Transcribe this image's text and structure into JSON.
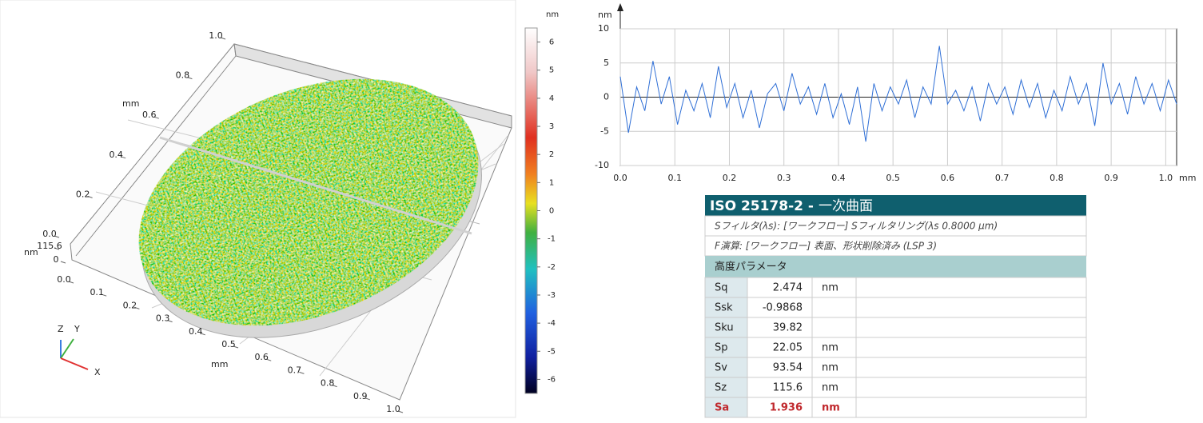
{
  "chart_data": {
    "type": "line",
    "y_label": "nm",
    "x_label": "mm",
    "color": "#2f6fd6",
    "grid": true,
    "xlim": [
      0,
      1.02
    ],
    "ylim": [
      -10,
      10
    ],
    "xticks": [
      {
        "value": 0,
        "label": "0.0"
      },
      0.1,
      0.2,
      0.3,
      0.4,
      0.5,
      0.6,
      0.7,
      0.8,
      0.9,
      {
        "value": 1,
        "label": "1.0"
      }
    ],
    "yticks": [
      10,
      5,
      0,
      -5,
      -10
    ],
    "x": [
      0,
      0.015,
      0.03,
      0.045,
      0.06,
      0.075,
      0.09,
      0.105,
      0.12,
      0.135,
      0.15,
      0.165,
      0.18,
      0.195,
      0.21,
      0.225,
      0.24,
      0.255,
      0.27,
      0.285,
      0.3,
      0.315,
      0.33,
      0.345,
      0.36,
      0.375,
      0.39,
      0.405,
      0.42,
      0.435,
      0.45,
      0.465,
      0.48,
      0.495,
      0.51,
      0.525,
      0.54,
      0.555,
      0.57,
      0.585,
      0.6,
      0.615,
      0.63,
      0.645,
      0.66,
      0.675,
      0.69,
      0.705,
      0.72,
      0.735,
      0.75,
      0.765,
      0.78,
      0.795,
      0.81,
      0.825,
      0.84,
      0.855,
      0.87,
      0.885,
      0.9,
      0.915,
      0.93,
      0.945,
      0.96,
      0.975,
      0.99,
      1.005,
      1.02
    ],
    "values": [
      3,
      -5.2,
      1.5,
      -2,
      5.3,
      -1,
      3,
      -4,
      1,
      -2,
      2,
      -3,
      4.5,
      -1.5,
      2,
      -3,
      1,
      -4.5,
      0.5,
      2,
      -2,
      3.5,
      -1,
      1.5,
      -2.5,
      2,
      -3,
      0.5,
      -4,
      1.5,
      -6.5,
      2,
      -2,
      1.5,
      -1,
      2.5,
      -3,
      1.5,
      -1,
      7.5,
      -1,
      1,
      -2,
      1.5,
      -3.5,
      2,
      -1,
      1.5,
      -2.5,
      2.5,
      -1.5,
      2,
      -3,
      1,
      -2,
      3,
      -1,
      2,
      -4.2,
      5,
      -1,
      2,
      -2.5,
      3,
      -1,
      2,
      -2,
      2.5,
      -1
    ]
  },
  "surface_view": {
    "y_axis": {
      "label": "mm",
      "ticks": [
        {
          "value": 0,
          "label": "0.0"
        },
        0.2,
        0.4,
        0.6,
        0.8,
        {
          "value": 1,
          "label": "1.0"
        }
      ]
    },
    "x_axis": {
      "label": "mm",
      "ticks": [
        {
          "value": 0,
          "label": "0.0"
        },
        0.1,
        0.2,
        0.3,
        0.4,
        0.5,
        0.6,
        0.7,
        0.8,
        0.9,
        {
          "value": 1,
          "label": "1.0"
        }
      ]
    },
    "z_axis": {
      "label": "nm",
      "ticks": [
        0,
        115.6
      ]
    },
    "colorbar": {
      "unit": "nm",
      "lim": [
        -6.5,
        6.5
      ],
      "ticks": [
        6,
        5,
        4,
        3,
        2,
        1,
        0,
        -1,
        -2,
        -3,
        -4,
        -5,
        -6
      ]
    },
    "gizmo": {
      "z": "Z",
      "y": "Y",
      "x": "X"
    }
  },
  "results_table": {
    "title": {
      "code": "ISO 25178-2 -",
      "name": "一次曲面"
    },
    "filter_s": "Sフィルタ(λs): [ワークフロー] Sフィルタリング(λs 0.8000 µm)",
    "filter_f": "F演算: [ワークフロー] 表面、形状削除済み (LSP 3)",
    "section": "高度パラメータ",
    "rows": [
      {
        "name": "Sq",
        "value": 2.474,
        "unit": "nm"
      },
      {
        "name": "Ssk",
        "value": -0.9868
      },
      {
        "name": "Sku",
        "value": 39.82
      },
      {
        "name": "Sp",
        "value": 22.05,
        "unit": "nm"
      },
      {
        "name": "Sv",
        "value": 93.54,
        "unit": "nm"
      },
      {
        "name": "Sz",
        "value": 115.6,
        "unit": "nm"
      },
      {
        "name": "Sa",
        "value": 1.936,
        "unit": "nm"
      }
    ]
  }
}
